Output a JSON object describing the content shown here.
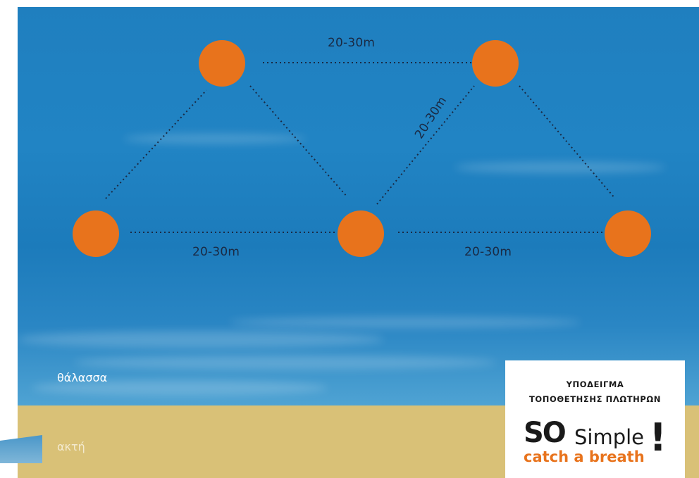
{
  "colors": {
    "sea": "#1f7fbf",
    "beach": "#d9c177",
    "buoy": "#e8731c",
    "dotted_line": "#1a2a44"
  },
  "buoys": [
    "buoy",
    "buoy",
    "buoy",
    "buoy",
    "buoy"
  ],
  "distances": {
    "top": "20-30m",
    "diagonal": "20-30m",
    "bottom_left": "20-30m",
    "bottom_right": "20-30m"
  },
  "areas": {
    "sea": "θάλασσα",
    "beach": "ακτή"
  },
  "info_box": {
    "title_line1": "ΥΠΟΔΕΙΓΜΑ",
    "title_line2": "ΤΟΠΟΘΕΤΗΣΗΣ ΠΛΩΤΗΡΩΝ",
    "logo_so": "SO",
    "logo_simple": "Simple",
    "logo_tagline": "catch a breath",
    "logo_exclamation": "!"
  }
}
